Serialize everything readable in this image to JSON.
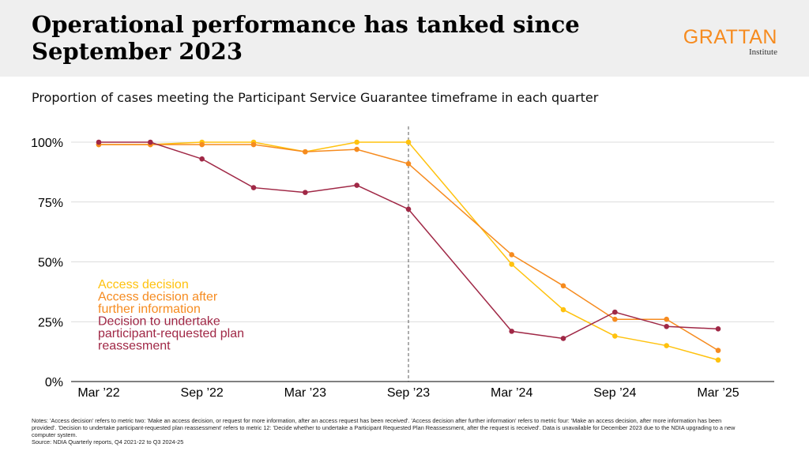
{
  "header": {
    "title": "Operational performance has tanked since September 2023",
    "logo_name": "GRATTAN",
    "logo_sub": "Institute"
  },
  "subtitle": "Proportion of cases meeting the Participant Service Guarantee timeframe in each quarter",
  "notes": "Notes: 'Access decision' refers to metric two: 'Make an access decision, or request for more information, after an access request has been received'. 'Access decision after further information' refers to metric four: 'Make an access decision, after more information has been provided'. 'Decision to undertake participant-requested plan reassessment' refers to metric 12: 'Decide whether to undertake a Participant Requested Plan Reassessment, after the request is received'. Data is unavailable for December 2023 due to the NDIA upgrading to a new computer system.",
  "source": "Source: NDIA Quarterly reports, Q4 2021-22 to Q3 2024-25",
  "colors": {
    "access": "#ffc20e",
    "access_further": "#f68b1f",
    "plan": "#a02846",
    "logo": "#f68b1f"
  },
  "chart_data": {
    "type": "line",
    "categories": [
      "Mar ’22",
      "Jun ’22",
      "Sep ’22",
      "Dec ’22",
      "Mar ’23",
      "Jun ’23",
      "Sep ’23",
      "Mar ’24",
      "Jun ’24",
      "Sep ’24",
      "Dec ’24",
      "Mar ’25"
    ],
    "x_positions": [
      0,
      1,
      2,
      3,
      4,
      5,
      6,
      8,
      9,
      10,
      11,
      12
    ],
    "x_ticks": [
      {
        "pos": 0,
        "label": "Mar ’22"
      },
      {
        "pos": 2,
        "label": "Sep ’22"
      },
      {
        "pos": 4,
        "label": "Mar ’23"
      },
      {
        "pos": 6,
        "label": "Sep ’23"
      },
      {
        "pos": 8,
        "label": "Mar ’24"
      },
      {
        "pos": 10,
        "label": "Sep ’24"
      },
      {
        "pos": 12,
        "label": "Mar ’25"
      }
    ],
    "y_ticks": [
      0,
      25,
      50,
      75,
      100
    ],
    "y_tick_labels": [
      "0%",
      "25%",
      "50%",
      "75%",
      "100%"
    ],
    "ylim": [
      0,
      100
    ],
    "grid": true,
    "reference_line_pos": 6,
    "series": [
      {
        "name": "Access decision",
        "color": "#ffc20e",
        "values": [
          99,
          99,
          100,
          100,
          96,
          100,
          100,
          49,
          30,
          19,
          15,
          9
        ]
      },
      {
        "name": "Access decision after further information",
        "color": "#f68b1f",
        "values": [
          99,
          99,
          99,
          99,
          96,
          97,
          91,
          53,
          40,
          26,
          26,
          13
        ]
      },
      {
        "name": "Decision to undertake participant-requested plan reassesment",
        "color": "#a02846",
        "values": [
          100,
          100,
          93,
          81,
          79,
          82,
          72,
          21,
          18,
          29,
          23,
          22
        ]
      }
    ],
    "legend_placement": "bottom-left",
    "legend_lines": [
      [
        "Access decision"
      ],
      [
        "Access decision after",
        "further information"
      ],
      [
        "Decision to undertake",
        "participant-requested plan",
        "reassesment"
      ]
    ]
  }
}
